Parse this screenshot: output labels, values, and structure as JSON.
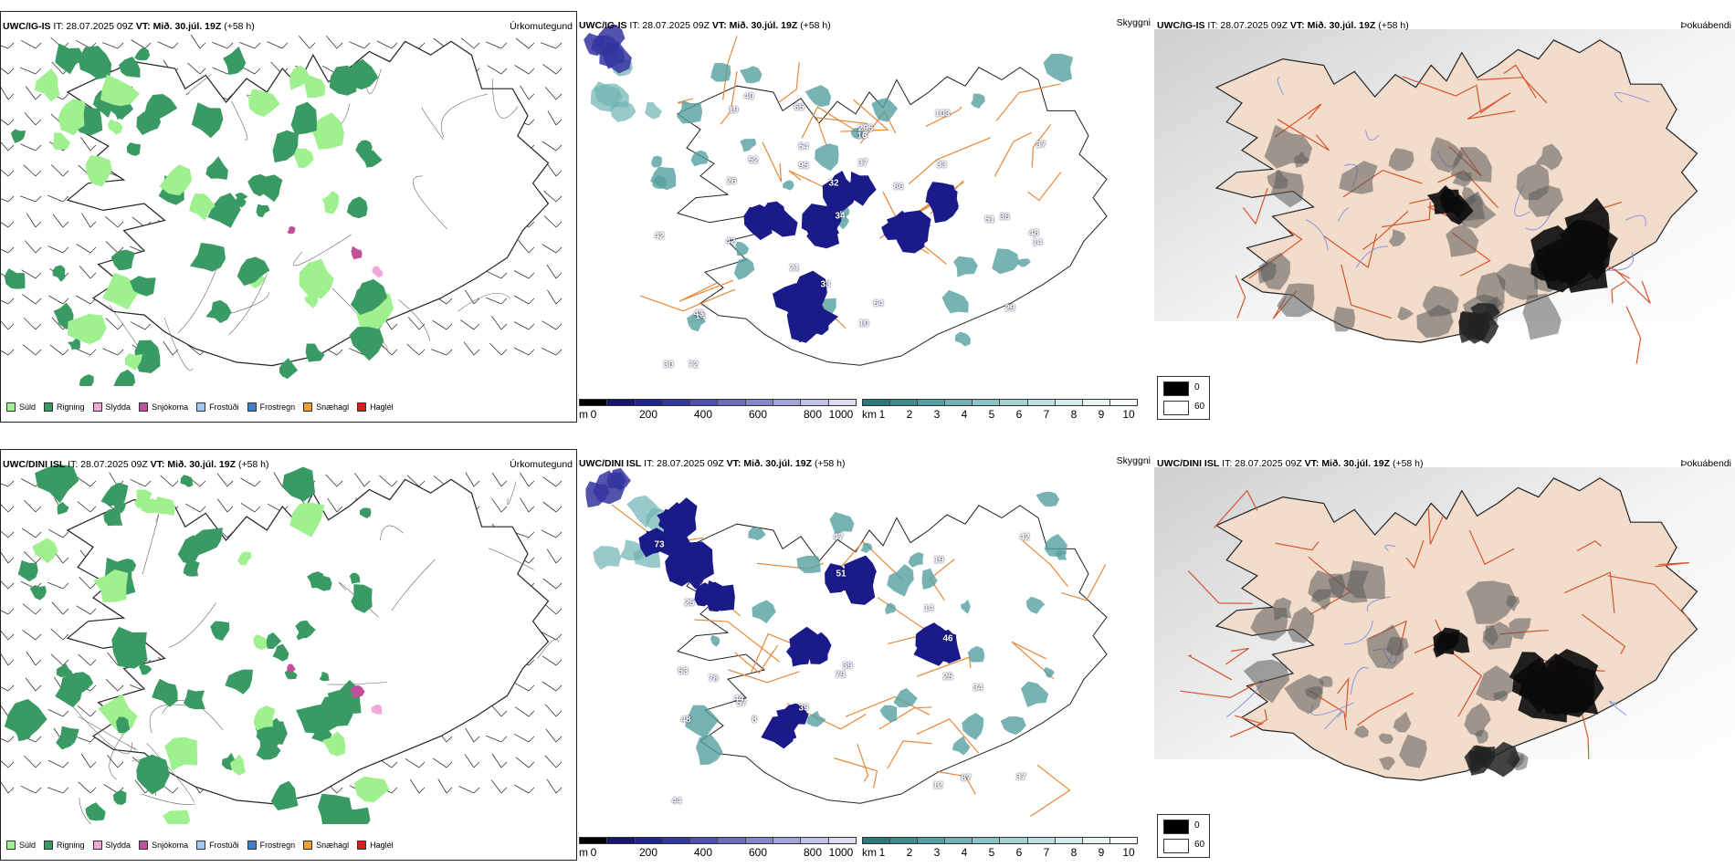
{
  "precip_type": {
    "legend": [
      {
        "label": "Súld",
        "color": "#9ff08f"
      },
      {
        "label": "Rigning",
        "color": "#3a9a63"
      },
      {
        "label": "Slydda",
        "color": "#f0a8d8"
      },
      {
        "label": "Snjókoma",
        "color": "#c0509a"
      },
      {
        "label": "Frostúði",
        "color": "#9ec8f0"
      },
      {
        "label": "Frostregn",
        "color": "#3f7fc8"
      },
      {
        "label": "Snæhagl",
        "color": "#f0a030"
      },
      {
        "label": "Haglél",
        "color": "#e01818"
      }
    ]
  },
  "panels": {
    "ig_precip": {
      "model": "UWC/IG-IS",
      "it": "IT: 28.07.2025 09Z",
      "vt_label": "VT:",
      "vt": "Mið. 30.júl. 19Z",
      "lead": "(+58 h)",
      "title": "Úrkomutegund"
    },
    "ig_cloud": {
      "model": "UWC/IG-IS",
      "it": "IT: 28.07.2025 09Z",
      "vt_label": "VT:",
      "vt": "Mið. 30.júl. 19Z",
      "lead": "(+58 h)",
      "title": "Skyggni"
    },
    "ig_fog": {
      "model": "UWC/IG-IS",
      "it": "IT: 28.07.2025 09Z",
      "vt_label": "VT:",
      "vt": "Mið. 30.júl. 19Z",
      "lead": "(+58 h)",
      "title": "Þokuábendi"
    },
    "dini_precip": {
      "model": "UWC/DINI ISL",
      "it": "IT: 28.07.2025 09Z",
      "vt_label": "VT:",
      "vt": "Mið. 30.júl. 19Z",
      "lead": "(+58 h)",
      "title": "Úrkomutegund"
    },
    "dini_cloud": {
      "model": "UWC/DINI ISL",
      "it": "IT: 28.07.2025 09Z",
      "vt_label": "VT:",
      "vt": "Mið. 30.júl. 19Z",
      "lead": "(+58 h)",
      "title": "Skyggni"
    },
    "dini_fog": {
      "model": "UWC/DINI ISL",
      "it": "IT: 28.07.2025 09Z",
      "vt_label": "VT:",
      "vt": "Mið. 30.júl. 19Z",
      "lead": "(+58 h)",
      "title": "Þokuábendi"
    }
  },
  "colorbar_m": {
    "unit": "m",
    "ticks": [
      "0",
      "200",
      "400",
      "600",
      "800",
      "1000"
    ],
    "colors": [
      "#000000",
      "#151570",
      "#23238f",
      "#3535a0",
      "#5050b0",
      "#6a6ac0",
      "#8585cf",
      "#a3a3dc",
      "#c0c0e8",
      "#dcdcf3"
    ]
  },
  "colorbar_km": {
    "unit": "km",
    "ticks": [
      "1",
      "2",
      "3",
      "4",
      "5",
      "6",
      "7",
      "8",
      "9",
      "10"
    ],
    "colors": [
      "#2a7a7a",
      "#3d8c8c",
      "#55a0a0",
      "#6fb2b2",
      "#8ac3c3",
      "#a4d2d2",
      "#bedfdf",
      "#d5ebeb",
      "#e8f4f4",
      "#f6fbfb"
    ]
  },
  "fog_legend": {
    "black": "0",
    "white": "60"
  },
  "cloud_labels_ig": [
    "42",
    "33",
    "54",
    "48",
    "37",
    "14",
    "36",
    "52",
    "26",
    "43",
    "10",
    "103",
    "295",
    "51",
    "34",
    "40",
    "30",
    "29",
    "64",
    "86",
    "95",
    "21",
    "65",
    "16",
    "32",
    "19",
    "14",
    "72",
    "33",
    "42",
    "37"
  ],
  "cloud_labels_dini": [
    "73",
    "79",
    "46",
    "42",
    "53",
    "57",
    "87",
    "39",
    "39",
    "44",
    "48",
    "51",
    "25",
    "12",
    "37",
    "47",
    "44",
    "34",
    "78",
    "8",
    "25",
    "14",
    "19"
  ]
}
